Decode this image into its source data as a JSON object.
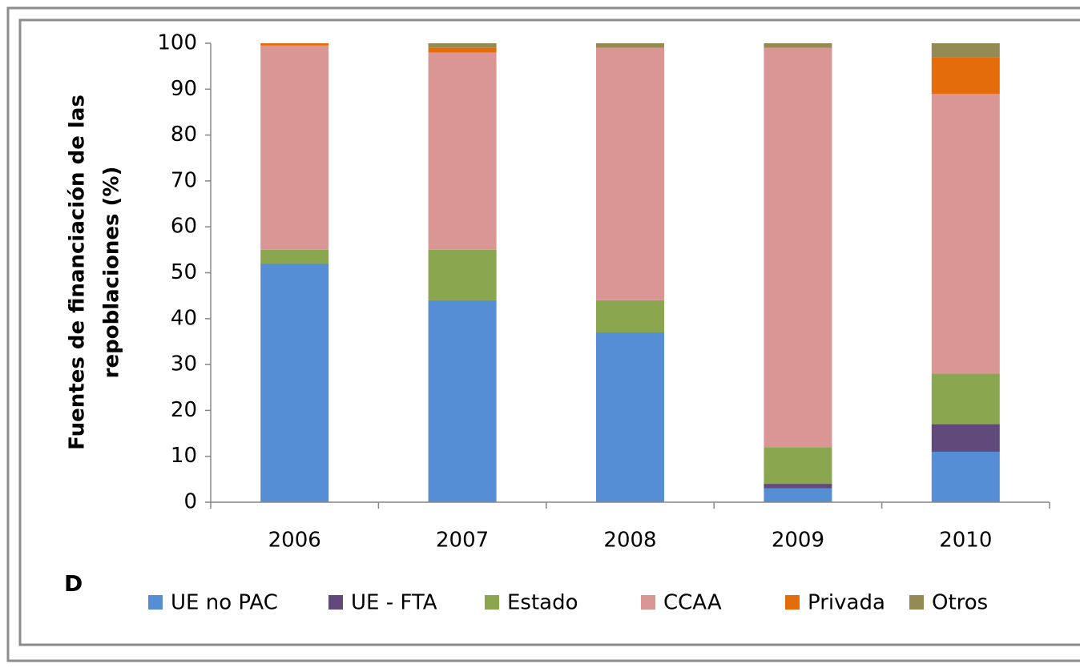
{
  "chart_data": {
    "type": "stacked_bar",
    "y_label": [
      "Fuentes de financiación de las",
      "repoblaciones (%)"
    ],
    "panel_label": "D",
    "categories": [
      "2006",
      "2007",
      "2008",
      "2009",
      "2010"
    ],
    "series": [
      {
        "name": "UE no PAC",
        "color": "#558ed5",
        "values": [
          52,
          44,
          37,
          3,
          11
        ]
      },
      {
        "name": "UE - FTA",
        "color": "#604a7b",
        "values": [
          0,
          0,
          0,
          1,
          6
        ]
      },
      {
        "name": "Estado",
        "color": "#8aa64e",
        "values": [
          3,
          11,
          7,
          8,
          11
        ]
      },
      {
        "name": "CCAA",
        "color": "#d99694",
        "values": [
          44.5,
          43,
          55,
          87,
          61
        ]
      },
      {
        "name": "Privada",
        "color": "#e46c0a",
        "values": [
          0.5,
          1,
          0,
          0,
          8
        ]
      },
      {
        "name": "Otros",
        "color": "#948a54",
        "values": [
          0,
          1,
          1,
          1,
          3
        ]
      }
    ],
    "ylim": [
      0,
      100
    ],
    "yticks": [
      0,
      10,
      20,
      30,
      40,
      50,
      60,
      70,
      80,
      90,
      100
    ],
    "grid": false,
    "legend": "bottom"
  }
}
